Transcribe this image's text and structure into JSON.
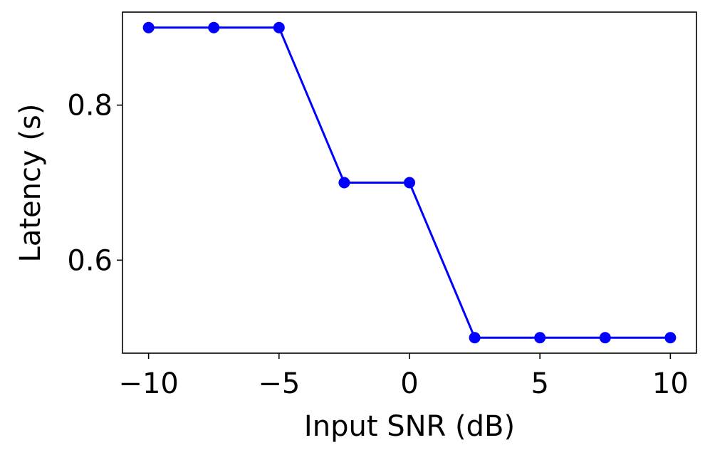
{
  "chart_data": {
    "type": "line",
    "x_label": "Input SNR (dB)",
    "y_label": "Latency (s)",
    "x": [
      -10,
      -7.5,
      -5,
      -2.5,
      0,
      2.5,
      5,
      7.5,
      10
    ],
    "values": [
      0.9,
      0.9,
      0.9,
      0.7,
      0.7,
      0.5,
      0.5,
      0.5,
      0.5
    ],
    "color": "#0000ff",
    "xlim": [
      -11,
      11
    ],
    "xticks": [
      {
        "value": -10,
        "label": "−10"
      },
      {
        "value": -5,
        "label": "−5"
      },
      0,
      5,
      10
    ],
    "ylim": [
      0.48,
      0.92
    ],
    "yticks": [
      0.6,
      0.8
    ],
    "grid": false
  }
}
